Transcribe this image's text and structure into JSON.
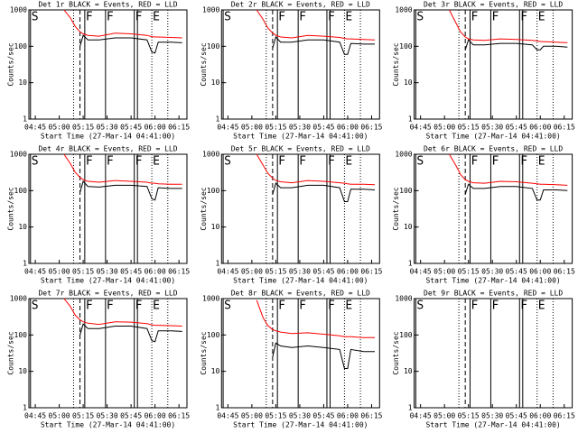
{
  "chart_data": [
    {
      "type": "line",
      "title": "Det 1r BLACK = Events, RED = LLD",
      "xlabel": "Start Time (27-Mar-14 04:41:00)",
      "ylabel": "Counts/sec",
      "log": true,
      "ylim": [
        1,
        1000
      ],
      "yticks": [
        1,
        10,
        100,
        1000
      ],
      "xlim": [
        "04:41",
        "06:20"
      ],
      "xticks": [
        "04:45",
        "05:00",
        "05:15",
        "05:30",
        "05:45",
        "06:00",
        "06:15"
      ],
      "x": [
        "05:03",
        "05:07",
        "05:10",
        "05:13",
        "05:15",
        "05:18",
        "05:25",
        "05:35",
        "05:45",
        "05:55",
        "05:58",
        "06:00",
        "06:02",
        "06:10",
        "06:17"
      ],
      "series": [
        {
          "color": "#000000",
          "values": [
            null,
            null,
            null,
            100,
            200,
            150,
            150,
            170,
            170,
            150,
            70,
            65,
            130,
            130,
            125
          ]
        },
        {
          "color": "#ff0000",
          "values": [
            1000,
            600,
            350,
            250,
            220,
            200,
            190,
            230,
            220,
            200,
            185,
            180,
            180,
            175,
            170
          ]
        }
      ],
      "markers": [
        {
          "time": "04:42",
          "style": "solid",
          "label": "S"
        },
        {
          "time": "05:09",
          "style": "dotted"
        },
        {
          "time": "05:13",
          "style": "dashed"
        },
        {
          "time": "05:16",
          "style": "solid",
          "label": "F"
        },
        {
          "time": "05:29",
          "style": "solid",
          "label": "F"
        },
        {
          "time": "05:47",
          "style": "solid",
          "label": "F"
        },
        {
          "time": "05:49",
          "style": "solid"
        },
        {
          "time": "05:58",
          "style": "dotted",
          "label": "E"
        },
        {
          "time": "06:08",
          "style": "dotted"
        }
      ]
    },
    {
      "type": "line",
      "title": "Det 2r BLACK = Events, RED = LLD",
      "xlabel": "Start Time (27-Mar-14 04:41:00)",
      "ylabel": "Counts/sec",
      "log": true,
      "ylim": [
        1,
        1000
      ],
      "yticks": [
        1,
        10,
        100,
        1000
      ],
      "xlim": [
        "04:41",
        "06:20"
      ],
      "xticks": [
        "04:45",
        "05:00",
        "05:15",
        "05:30",
        "05:45",
        "06:00",
        "06:15"
      ],
      "x": [
        "05:03",
        "05:07",
        "05:10",
        "05:13",
        "05:15",
        "05:18",
        "05:25",
        "05:35",
        "05:45",
        "05:55",
        "05:58",
        "06:00",
        "06:02",
        "06:10",
        "06:17"
      ],
      "series": [
        {
          "color": "#000000",
          "values": [
            null,
            null,
            null,
            90,
            180,
            130,
            130,
            150,
            150,
            130,
            60,
            60,
            120,
            115,
            115
          ]
        },
        {
          "color": "#ff0000",
          "values": [
            1000,
            550,
            320,
            230,
            200,
            180,
            170,
            200,
            190,
            175,
            165,
            160,
            160,
            155,
            150
          ]
        }
      ],
      "markers": [
        {
          "time": "04:42",
          "style": "solid",
          "label": "S"
        },
        {
          "time": "05:09",
          "style": "dotted"
        },
        {
          "time": "05:13",
          "style": "dashed"
        },
        {
          "time": "05:16",
          "style": "solid",
          "label": "F"
        },
        {
          "time": "05:29",
          "style": "solid",
          "label": "F"
        },
        {
          "time": "05:47",
          "style": "solid",
          "label": "F"
        },
        {
          "time": "05:49",
          "style": "solid"
        },
        {
          "time": "05:58",
          "style": "dotted",
          "label": "E"
        },
        {
          "time": "06:08",
          "style": "dotted"
        }
      ]
    },
    {
      "type": "line",
      "title": "Det 3r BLACK = Events, RED = LLD",
      "xlabel": "Start Time (27-Mar-14 04:41:00)",
      "ylabel": "Counts/sec",
      "log": true,
      "ylim": [
        1,
        1000
      ],
      "yticks": [
        1,
        10,
        100,
        1000
      ],
      "xlim": [
        "04:41",
        "06:20"
      ],
      "xticks": [
        "04:45",
        "05:00",
        "05:15",
        "05:30",
        "05:45",
        "06:00",
        "06:15"
      ],
      "x": [
        "05:03",
        "05:07",
        "05:10",
        "05:13",
        "05:15",
        "05:18",
        "05:25",
        "05:35",
        "05:45",
        "05:55",
        "05:58",
        "06:00",
        "06:02",
        "06:10",
        "06:17"
      ],
      "series": [
        {
          "color": "#000000",
          "values": [
            null,
            null,
            null,
            80,
            150,
            110,
            110,
            120,
            120,
            110,
            80,
            80,
            100,
            100,
            95
          ]
        },
        {
          "color": "#ff0000",
          "values": [
            1000,
            450,
            250,
            180,
            160,
            150,
            145,
            160,
            155,
            145,
            140,
            135,
            135,
            130,
            125
          ]
        }
      ],
      "markers": [
        {
          "time": "04:42",
          "style": "solid",
          "label": "S"
        },
        {
          "time": "05:09",
          "style": "dotted"
        },
        {
          "time": "05:13",
          "style": "dashed"
        },
        {
          "time": "05:16",
          "style": "solid",
          "label": "F"
        },
        {
          "time": "05:29",
          "style": "solid",
          "label": "F"
        },
        {
          "time": "05:47",
          "style": "solid",
          "label": "F"
        },
        {
          "time": "05:49",
          "style": "solid"
        },
        {
          "time": "05:58",
          "style": "dotted",
          "label": "E"
        },
        {
          "time": "06:08",
          "style": "dotted"
        }
      ]
    },
    {
      "type": "line",
      "title": "Det 4r BLACK = Events, RED = LLD",
      "xlabel": "Start Time (27-Mar-14 04:41:00)",
      "ylabel": "Counts/sec",
      "log": true,
      "ylim": [
        1,
        1000
      ],
      "yticks": [
        1,
        10,
        100,
        1000
      ],
      "xlim": [
        "04:41",
        "06:20"
      ],
      "xticks": [
        "04:45",
        "05:00",
        "05:15",
        "05:30",
        "05:45",
        "06:00",
        "06:15"
      ],
      "x": [
        "05:03",
        "05:07",
        "05:10",
        "05:13",
        "05:15",
        "05:18",
        "05:25",
        "05:35",
        "05:45",
        "05:55",
        "05:58",
        "06:00",
        "06:02",
        "06:10",
        "06:17"
      ],
      "series": [
        {
          "color": "#000000",
          "values": [
            null,
            null,
            null,
            90,
            180,
            130,
            125,
            140,
            140,
            130,
            60,
            55,
            120,
            115,
            115
          ]
        },
        {
          "color": "#ff0000",
          "values": [
            1000,
            550,
            320,
            230,
            200,
            180,
            170,
            190,
            180,
            170,
            160,
            160,
            155,
            150,
            150
          ]
        }
      ],
      "markers": [
        {
          "time": "04:42",
          "style": "solid",
          "label": "S"
        },
        {
          "time": "05:09",
          "style": "dotted"
        },
        {
          "time": "05:13",
          "style": "dashed"
        },
        {
          "time": "05:16",
          "style": "solid",
          "label": "F"
        },
        {
          "time": "05:29",
          "style": "solid",
          "label": "F"
        },
        {
          "time": "05:47",
          "style": "solid",
          "label": "F"
        },
        {
          "time": "05:49",
          "style": "solid"
        },
        {
          "time": "05:58",
          "style": "dotted",
          "label": "E"
        },
        {
          "time": "06:08",
          "style": "dotted"
        }
      ]
    },
    {
      "type": "line",
      "title": "Det 5r BLACK = Events, RED = LLD",
      "xlabel": "Start Time (27-Mar-14 04:41:00)",
      "ylabel": "Counts/sec",
      "log": true,
      "ylim": [
        1,
        1000
      ],
      "yticks": [
        1,
        10,
        100,
        1000
      ],
      "xlim": [
        "04:41",
        "06:20"
      ],
      "xticks": [
        "04:45",
        "05:00",
        "05:15",
        "05:30",
        "05:45",
        "06:00",
        "06:15"
      ],
      "x": [
        "05:03",
        "05:07",
        "05:10",
        "05:13",
        "05:15",
        "05:18",
        "05:25",
        "05:35",
        "05:45",
        "05:55",
        "05:58",
        "06:00",
        "06:02",
        "06:10",
        "06:17"
      ],
      "series": [
        {
          "color": "#000000",
          "values": [
            null,
            null,
            null,
            80,
            160,
            120,
            120,
            140,
            140,
            120,
            50,
            50,
            110,
            110,
            105
          ]
        },
        {
          "color": "#ff0000",
          "values": [
            1000,
            500,
            300,
            220,
            190,
            175,
            165,
            190,
            180,
            165,
            160,
            155,
            150,
            150,
            145
          ]
        }
      ],
      "markers": [
        {
          "time": "04:42",
          "style": "solid",
          "label": "S"
        },
        {
          "time": "05:09",
          "style": "dotted"
        },
        {
          "time": "05:13",
          "style": "dashed"
        },
        {
          "time": "05:16",
          "style": "solid",
          "label": "F"
        },
        {
          "time": "05:29",
          "style": "solid",
          "label": "F"
        },
        {
          "time": "05:47",
          "style": "solid",
          "label": "F"
        },
        {
          "time": "05:49",
          "style": "solid"
        },
        {
          "time": "05:58",
          "style": "dotted",
          "label": "E"
        },
        {
          "time": "06:08",
          "style": "dotted"
        }
      ]
    },
    {
      "type": "line",
      "title": "Det 6r BLACK = Events, RED = LLD",
      "xlabel": "Start Time (27-Mar-14 04:41:00)",
      "ylabel": "Counts/sec",
      "log": true,
      "ylim": [
        1,
        1000
      ],
      "yticks": [
        1,
        10,
        100,
        1000
      ],
      "xlim": [
        "04:41",
        "06:20"
      ],
      "xticks": [
        "04:45",
        "05:00",
        "05:15",
        "05:30",
        "05:45",
        "06:00",
        "06:15"
      ],
      "x": [
        "05:03",
        "05:07",
        "05:10",
        "05:13",
        "05:15",
        "05:18",
        "05:25",
        "05:35",
        "05:45",
        "05:55",
        "05:58",
        "06:00",
        "06:02",
        "06:10",
        "06:17"
      ],
      "series": [
        {
          "color": "#000000",
          "values": [
            null,
            null,
            null,
            80,
            150,
            115,
            115,
            130,
            130,
            115,
            55,
            55,
            105,
            105,
            100
          ]
        },
        {
          "color": "#ff0000",
          "values": [
            1000,
            500,
            280,
            200,
            180,
            165,
            160,
            180,
            175,
            160,
            155,
            150,
            150,
            145,
            140
          ]
        }
      ],
      "markers": [
        {
          "time": "04:42",
          "style": "solid",
          "label": "S"
        },
        {
          "time": "05:09",
          "style": "dotted"
        },
        {
          "time": "05:13",
          "style": "dashed"
        },
        {
          "time": "05:16",
          "style": "solid",
          "label": "F"
        },
        {
          "time": "05:29",
          "style": "solid",
          "label": "F"
        },
        {
          "time": "05:47",
          "style": "solid",
          "label": "F"
        },
        {
          "time": "05:49",
          "style": "solid"
        },
        {
          "time": "05:58",
          "style": "dotted",
          "label": "E"
        },
        {
          "time": "06:08",
          "style": "dotted"
        }
      ]
    },
    {
      "type": "line",
      "title": "Det 7r BLACK = Events, RED = LLD",
      "xlabel": "Start Time (27-Mar-14 04:41:00)",
      "ylabel": "Counts/sec",
      "log": true,
      "ylim": [
        1,
        1000
      ],
      "yticks": [
        1,
        10,
        100,
        1000
      ],
      "xlim": [
        "04:41",
        "06:20"
      ],
      "xticks": [
        "04:45",
        "05:00",
        "05:15",
        "05:30",
        "05:45",
        "06:00",
        "06:15"
      ],
      "x": [
        "05:03",
        "05:07",
        "05:10",
        "05:13",
        "05:15",
        "05:18",
        "05:25",
        "05:35",
        "05:45",
        "05:55",
        "05:58",
        "06:00",
        "06:02",
        "06:10",
        "06:17"
      ],
      "series": [
        {
          "color": "#000000",
          "values": [
            null,
            null,
            null,
            100,
            200,
            150,
            150,
            175,
            175,
            150,
            70,
            65,
            130,
            130,
            125
          ]
        },
        {
          "color": "#ff0000",
          "values": [
            1000,
            600,
            350,
            260,
            230,
            210,
            195,
            230,
            225,
            205,
            190,
            185,
            185,
            180,
            175
          ]
        }
      ],
      "markers": [
        {
          "time": "04:42",
          "style": "solid",
          "label": "S"
        },
        {
          "time": "05:09",
          "style": "dotted"
        },
        {
          "time": "05:13",
          "style": "dashed"
        },
        {
          "time": "05:16",
          "style": "solid",
          "label": "F"
        },
        {
          "time": "05:29",
          "style": "solid",
          "label": "F"
        },
        {
          "time": "05:47",
          "style": "solid",
          "label": "F"
        },
        {
          "time": "05:49",
          "style": "solid"
        },
        {
          "time": "05:58",
          "style": "dotted",
          "label": "E"
        },
        {
          "time": "06:08",
          "style": "dotted"
        }
      ]
    },
    {
      "type": "line",
      "title": "Det 8r BLACK = Events, RED = LLD",
      "xlabel": "Start Time (27-Mar-14 04:41:00)",
      "ylabel": "Counts/sec",
      "log": true,
      "ylim": [
        1,
        1000
      ],
      "yticks": [
        1,
        10,
        100,
        1000
      ],
      "xlim": [
        "04:41",
        "06:20"
      ],
      "xticks": [
        "04:45",
        "05:00",
        "05:15",
        "05:30",
        "05:45",
        "06:00",
        "06:15"
      ],
      "x": [
        "05:03",
        "05:07",
        "05:10",
        "05:13",
        "05:15",
        "05:18",
        "05:25",
        "05:35",
        "05:45",
        "05:55",
        "05:58",
        "06:00",
        "06:02",
        "06:10",
        "06:17"
      ],
      "series": [
        {
          "color": "#000000",
          "values": [
            null,
            null,
            null,
            25,
            60,
            50,
            45,
            50,
            45,
            40,
            12,
            12,
            40,
            35,
            35
          ]
        },
        {
          "color": "#ff0000",
          "values": [
            900,
            300,
            180,
            140,
            130,
            120,
            110,
            115,
            105,
            95,
            90,
            90,
            90,
            85,
            85
          ]
        }
      ],
      "markers": [
        {
          "time": "04:42",
          "style": "solid",
          "label": "S"
        },
        {
          "time": "05:09",
          "style": "dotted"
        },
        {
          "time": "05:13",
          "style": "dashed"
        },
        {
          "time": "05:16",
          "style": "solid",
          "label": "F"
        },
        {
          "time": "05:29",
          "style": "solid",
          "label": "F"
        },
        {
          "time": "05:47",
          "style": "solid",
          "label": "F"
        },
        {
          "time": "05:49",
          "style": "solid"
        },
        {
          "time": "05:58",
          "style": "dotted",
          "label": "E"
        },
        {
          "time": "06:08",
          "style": "dotted"
        }
      ]
    },
    {
      "type": "line",
      "title": "Det 9r BLACK = Events, RED = LLD",
      "xlabel": "Start Time (27-Mar-14 04:41:00)",
      "ylabel": "Counts/sec",
      "log": true,
      "ylim": [
        1,
        1000
      ],
      "yticks": [
        1,
        10,
        100,
        1000
      ],
      "xlim": [
        "04:41",
        "06:20"
      ],
      "xticks": [
        "04:45",
        "05:00",
        "05:15",
        "05:30",
        "05:45",
        "06:00",
        "06:15"
      ],
      "x": [],
      "series": [],
      "markers": [
        {
          "time": "04:42",
          "style": "solid",
          "label": "S"
        },
        {
          "time": "05:09",
          "style": "dotted"
        },
        {
          "time": "05:13",
          "style": "dashed"
        },
        {
          "time": "05:16",
          "style": "solid",
          "label": "F"
        },
        {
          "time": "05:29",
          "style": "solid",
          "label": "F"
        },
        {
          "time": "05:47",
          "style": "solid",
          "label": "F"
        },
        {
          "time": "05:49",
          "style": "solid"
        },
        {
          "time": "05:58",
          "style": "dotted",
          "label": "E"
        },
        {
          "time": "06:08",
          "style": "dotted"
        }
      ]
    }
  ]
}
